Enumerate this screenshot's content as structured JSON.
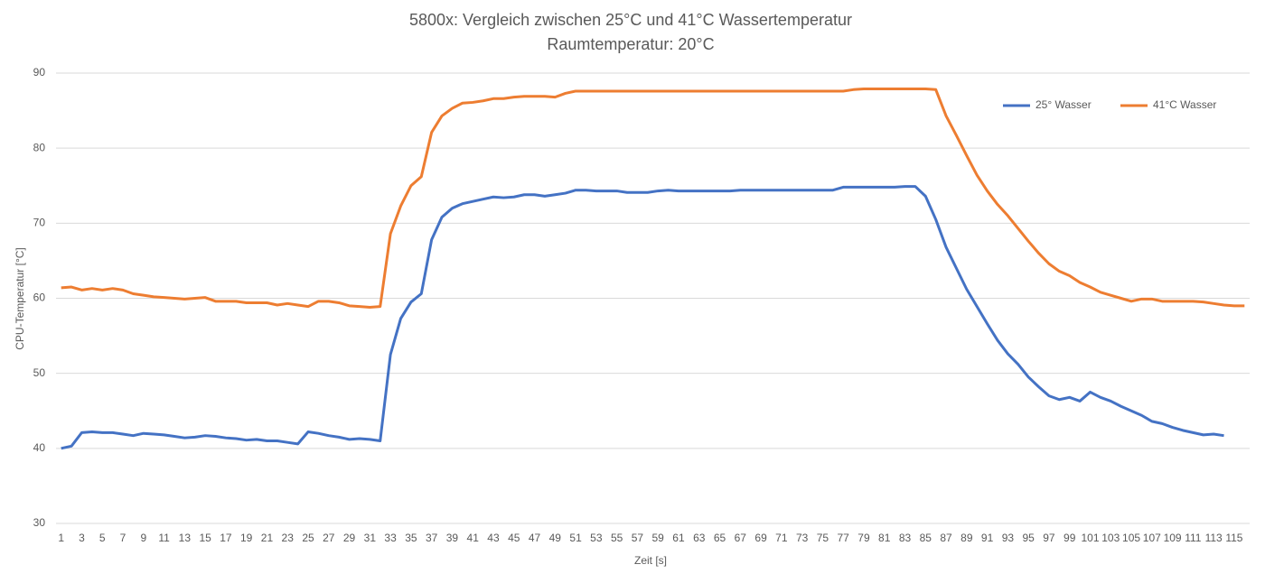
{
  "chart_data": {
    "type": "line",
    "title": "5800x: Vergleich zwischen 25°C und 41°C Wassertemperatur",
    "subtitle": "Raumtemperatur:  20°C",
    "x_label": "Zeit [s]",
    "y_label": "CPU-Temperatur [°C]",
    "categories": [
      1,
      null,
      3,
      null,
      5,
      null,
      7,
      null,
      9,
      null,
      11,
      null,
      13,
      null,
      15,
      null,
      17,
      null,
      19,
      null,
      21,
      null,
      23,
      null,
      25,
      null,
      27,
      null,
      29,
      null,
      31,
      null,
      33,
      null,
      35,
      null,
      37,
      null,
      39,
      null,
      41,
      null,
      43,
      null,
      45,
      null,
      47,
      null,
      49,
      null,
      51,
      null,
      53,
      null,
      55,
      null,
      57,
      null,
      59,
      null,
      61,
      null,
      63,
      null,
      65,
      null,
      67,
      null,
      69,
      null,
      71,
      null,
      73,
      null,
      75,
      null,
      77,
      null,
      79,
      null,
      81,
      null,
      83,
      null,
      85,
      null,
      87,
      null,
      89,
      null,
      91,
      null,
      93,
      null,
      95,
      null,
      97,
      null,
      99,
      null,
      101,
      null,
      103,
      null,
      105,
      null,
      107,
      null,
      109,
      null,
      111,
      null,
      113,
      null,
      115,
      null
    ],
    "series": [
      {
        "name": "25° Wasser",
        "color": "#4472c4",
        "values": [
          40.0,
          40.3,
          42.1,
          42.2,
          42.1,
          42.1,
          41.9,
          41.7,
          42.0,
          41.9,
          41.8,
          41.6,
          41.4,
          41.5,
          41.7,
          41.6,
          41.4,
          41.3,
          41.1,
          41.2,
          41.0,
          41.0,
          40.8,
          40.6,
          42.2,
          42.0,
          41.7,
          41.5,
          41.2,
          41.3,
          41.2,
          41.0,
          52.5,
          57.3,
          59.5,
          60.6,
          67.8,
          70.8,
          72.0,
          72.6,
          72.9,
          73.2,
          73.5,
          73.4,
          73.5,
          73.8,
          73.8,
          73.6,
          73.8,
          74.0,
          74.4,
          74.4,
          74.3,
          74.3,
          74.3,
          74.1,
          74.1,
          74.1,
          74.3,
          74.4,
          74.3,
          74.3,
          74.3,
          74.3,
          74.3,
          74.3,
          74.4,
          74.4,
          74.4,
          74.4,
          74.4,
          74.4,
          74.4,
          74.4,
          74.4,
          74.4,
          74.8,
          74.8,
          74.8,
          74.8,
          74.8,
          74.8,
          74.9,
          74.9,
          73.6,
          70.5,
          66.8,
          64.0,
          61.2,
          58.9,
          56.6,
          54.4,
          52.6,
          51.2,
          49.5,
          48.2,
          47.0,
          46.5,
          46.8,
          46.3,
          47.5,
          46.8,
          46.3,
          45.6,
          45.0,
          44.4,
          43.6,
          43.3,
          42.8,
          42.4,
          42.1,
          41.8,
          41.9,
          41.7,
          null,
          null
        ]
      },
      {
        "name": "41°C Wasser",
        "color": "#ed7d31",
        "values": [
          61.4,
          61.5,
          61.1,
          61.3,
          61.1,
          61.3,
          61.1,
          60.6,
          60.4,
          60.2,
          60.1,
          60.0,
          59.9,
          60.0,
          60.1,
          59.6,
          59.6,
          59.6,
          59.4,
          59.4,
          59.4,
          59.1,
          59.3,
          59.1,
          58.9,
          59.6,
          59.6,
          59.4,
          59.0,
          58.9,
          58.8,
          58.9,
          68.6,
          72.3,
          75.0,
          76.2,
          82.1,
          84.3,
          85.3,
          86.0,
          86.1,
          86.3,
          86.6,
          86.6,
          86.8,
          86.9,
          86.9,
          86.9,
          86.8,
          87.3,
          87.6,
          87.6,
          87.6,
          87.6,
          87.6,
          87.6,
          87.6,
          87.6,
          87.6,
          87.6,
          87.6,
          87.6,
          87.6,
          87.6,
          87.6,
          87.6,
          87.6,
          87.6,
          87.6,
          87.6,
          87.6,
          87.6,
          87.6,
          87.6,
          87.6,
          87.6,
          87.6,
          87.8,
          87.9,
          87.9,
          87.9,
          87.9,
          87.9,
          87.9,
          87.9,
          87.8,
          84.3,
          81.7,
          79.0,
          76.4,
          74.3,
          72.5,
          71.0,
          69.3,
          67.6,
          66.0,
          64.6,
          63.6,
          63.0,
          62.1,
          61.5,
          60.8,
          60.4,
          60.0,
          59.6,
          59.9,
          59.9,
          59.6,
          59.6,
          59.6,
          59.6,
          59.5,
          59.3,
          59.1,
          59.0,
          59.0
        ]
      }
    ],
    "ylim": [
      30,
      90
    ],
    "yticks": [
      30,
      40,
      50,
      60,
      70,
      80,
      90
    ],
    "grid": true,
    "legend": "top-right"
  }
}
